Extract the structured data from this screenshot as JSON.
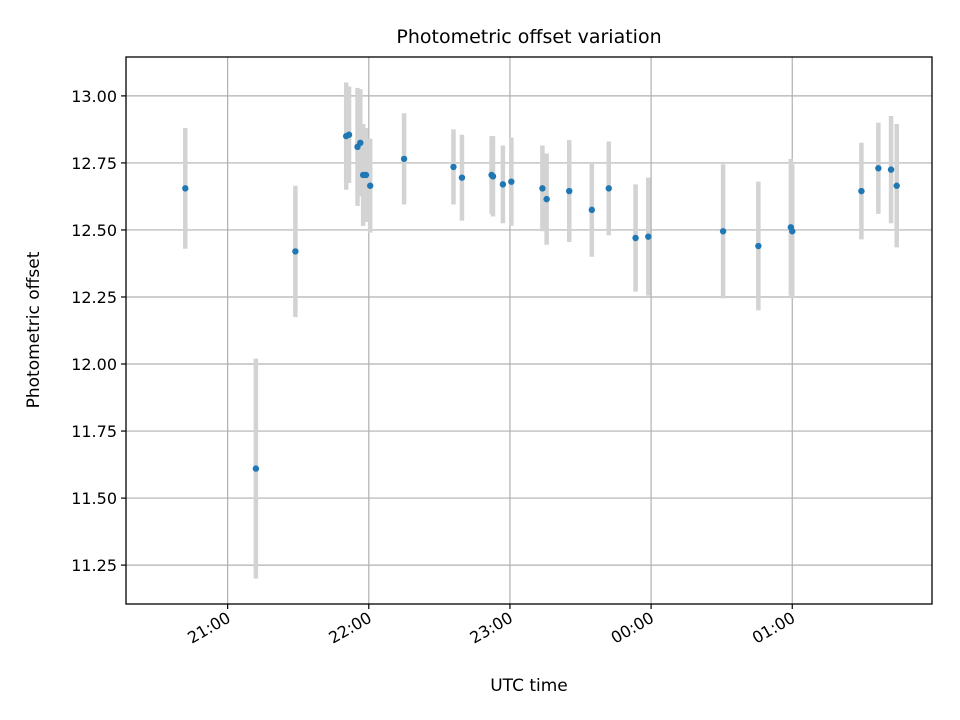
{
  "chart_data": {
    "type": "scatter",
    "title": "Photometric offset variation",
    "xlabel": "UTC time",
    "ylabel": "Photometric offset",
    "x_unit": "UTC clock time (hours past 00:00 of the first night; values above 24 are after midnight)",
    "xlim": [
      20.28,
      25.99
    ],
    "ylim": [
      11.105,
      13.145
    ],
    "x_ticks": [
      21,
      22,
      23,
      24,
      25
    ],
    "x_tick_labels": [
      "21:00",
      "22:00",
      "23:00",
      "00:00",
      "01:00"
    ],
    "y_ticks": [
      11.25,
      11.5,
      11.75,
      12.0,
      12.25,
      12.5,
      12.75,
      13.0
    ],
    "y_tick_labels": [
      "11.25",
      "11.50",
      "11.75",
      "12.00",
      "12.25",
      "12.50",
      "12.75",
      "13.00"
    ],
    "grid": true,
    "colors": {
      "point": "#1f77b4",
      "errorbar": "#d3d3d3",
      "grid": "#b0b0b0"
    },
    "series": [
      {
        "points": [
          {
            "x": 20.7,
            "y": 12.655,
            "err": 0.225
          },
          {
            "x": 21.2,
            "y": 11.61,
            "err": 0.41
          },
          {
            "x": 21.48,
            "y": 12.42,
            "err": 0.245
          },
          {
            "x": 21.84,
            "y": 12.85,
            "err": 0.2
          },
          {
            "x": 21.86,
            "y": 12.855,
            "err": 0.18
          },
          {
            "x": 21.92,
            "y": 12.81,
            "err": 0.22
          },
          {
            "x": 21.94,
            "y": 12.825,
            "err": 0.2
          },
          {
            "x": 21.96,
            "y": 12.705,
            "err": 0.19
          },
          {
            "x": 21.98,
            "y": 12.705,
            "err": 0.175
          },
          {
            "x": 22.01,
            "y": 12.665,
            "err": 0.175
          },
          {
            "x": 22.25,
            "y": 12.765,
            "err": 0.17
          },
          {
            "x": 22.6,
            "y": 12.735,
            "err": 0.14
          },
          {
            "x": 22.66,
            "y": 12.695,
            "err": 0.16
          },
          {
            "x": 22.87,
            "y": 12.705,
            "err": 0.145
          },
          {
            "x": 22.88,
            "y": 12.7,
            "err": 0.15
          },
          {
            "x": 22.95,
            "y": 12.67,
            "err": 0.145
          },
          {
            "x": 23.01,
            "y": 12.68,
            "err": 0.165
          },
          {
            "x": 23.23,
            "y": 12.655,
            "err": 0.16
          },
          {
            "x": 23.26,
            "y": 12.615,
            "err": 0.17
          },
          {
            "x": 23.42,
            "y": 12.645,
            "err": 0.19
          },
          {
            "x": 23.58,
            "y": 12.575,
            "err": 0.175
          },
          {
            "x": 23.7,
            "y": 12.655,
            "err": 0.175
          },
          {
            "x": 23.89,
            "y": 12.47,
            "err": 0.2
          },
          {
            "x": 23.98,
            "y": 12.475,
            "err": 0.22
          },
          {
            "x": 24.51,
            "y": 12.495,
            "err": 0.25
          },
          {
            "x": 24.76,
            "y": 12.44,
            "err": 0.24
          },
          {
            "x": 24.99,
            "y": 12.51,
            "err": 0.255
          },
          {
            "x": 25.0,
            "y": 12.495,
            "err": 0.25
          },
          {
            "x": 25.49,
            "y": 12.645,
            "err": 0.18
          },
          {
            "x": 25.61,
            "y": 12.73,
            "err": 0.17
          },
          {
            "x": 25.7,
            "y": 12.725,
            "err": 0.2
          },
          {
            "x": 25.74,
            "y": 12.665,
            "err": 0.23
          }
        ]
      }
    ]
  }
}
